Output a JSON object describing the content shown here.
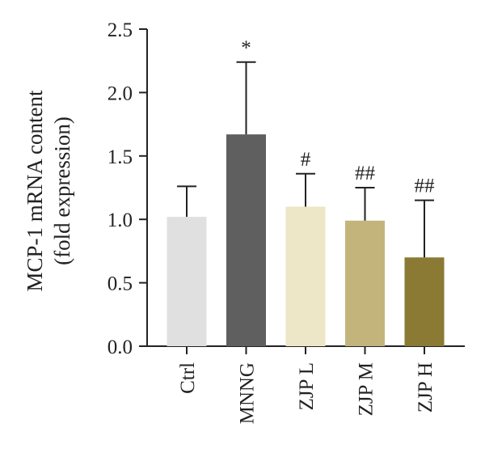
{
  "chart_data": {
    "type": "bar",
    "title": "",
    "xlabel": "",
    "ylabel": [
      "MCP-1 mRNA content",
      "(fold expression)"
    ],
    "ylim": [
      0,
      2.5
    ],
    "yticks": [
      "0.0",
      "0.5",
      "1.0",
      "1.5",
      "2.0",
      "2.5"
    ],
    "categories": [
      "Ctrl",
      "MNNG",
      "ZJP L",
      "ZJP M",
      "ZJP H"
    ],
    "values": [
      1.02,
      1.67,
      1.1,
      0.99,
      0.7
    ],
    "errors": [
      0.24,
      0.57,
      0.26,
      0.26,
      0.45
    ],
    "annotations": [
      "",
      "*",
      "#",
      "##",
      "##"
    ],
    "colors": [
      "#e0e0e0",
      "#5f5f5f",
      "#ede6c7",
      "#c3b47c",
      "#8a7a34"
    ],
    "grid": false
  }
}
